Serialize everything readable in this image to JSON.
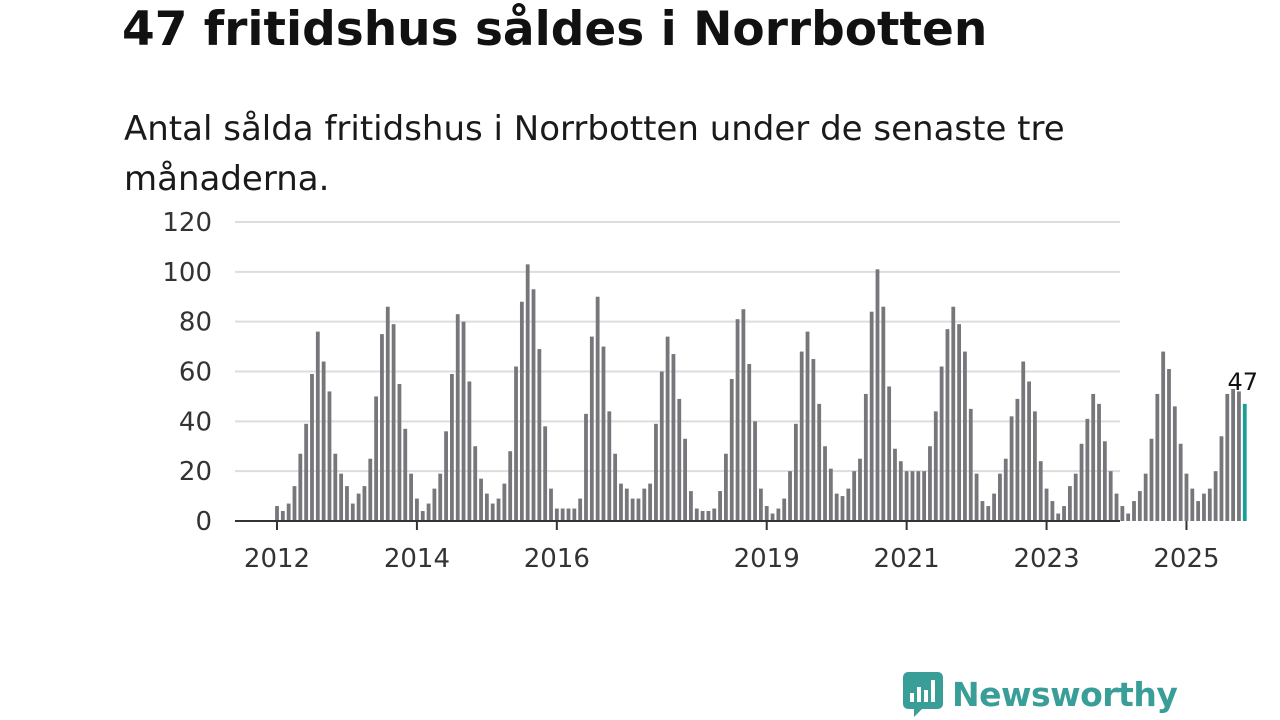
{
  "header": {
    "title": "47 fritidshus såldes i Norrbotten",
    "subtitle": "Antal sålda fritidshus i Norrbotten under de senaste tre månaderna."
  },
  "brand": {
    "name": "Newsworthy",
    "icon": "newsworthy-chart-bubble-icon",
    "color": "#3a9e98"
  },
  "colors": {
    "bar": "#77767b",
    "highlight": "#1a9e9a",
    "grid": "#dddddd",
    "axis": "#333333"
  },
  "chart_data": {
    "type": "bar",
    "title": "47 fritidshus såldes i Norrbotten",
    "subtitle": "Antal sålda fritidshus i Norrbotten under de senaste tre månaderna.",
    "xlabel": "",
    "ylabel": "",
    "ylim": [
      0,
      120
    ],
    "y_ticks": [
      0,
      20,
      40,
      60,
      80,
      100,
      120
    ],
    "x_tick_labels": [
      "2012",
      "2014",
      "2016",
      "2019",
      "2021",
      "2023",
      "2025"
    ],
    "grid": true,
    "legend": "none",
    "first_period": "2012-01",
    "period_unit": "month",
    "values": [
      6,
      4,
      7,
      14,
      27,
      39,
      59,
      76,
      64,
      52,
      27,
      19,
      14,
      7,
      11,
      14,
      25,
      50,
      75,
      86,
      79,
      55,
      37,
      19,
      9,
      4,
      7,
      13,
      19,
      36,
      59,
      83,
      80,
      56,
      30,
      17,
      11,
      7,
      9,
      15,
      28,
      62,
      88,
      103,
      93,
      69,
      38,
      13,
      5,
      5,
      5,
      5,
      9,
      43,
      74,
      90,
      70,
      44,
      27,
      15,
      13,
      9,
      9,
      13,
      15,
      39,
      60,
      74,
      67,
      49,
      33,
      12,
      5,
      4,
      4,
      5,
      12,
      27,
      57,
      81,
      85,
      63,
      40,
      13,
      6,
      3,
      5,
      9,
      20,
      39,
      68,
      76,
      65,
      47,
      30,
      21,
      11,
      10,
      13,
      20,
      25,
      51,
      84,
      101,
      86,
      54,
      29,
      24,
      20,
      20,
      20,
      20,
      30,
      44,
      62,
      77,
      86,
      79,
      68,
      45,
      19,
      8,
      6,
      11,
      19,
      25,
      42,
      49,
      64,
      56,
      44,
      24,
      13,
      8,
      3,
      6,
      14,
      19,
      31,
      41,
      51,
      47,
      32,
      20,
      11,
      6,
      3,
      8,
      12,
      19,
      33,
      51,
      68,
      61,
      46,
      31,
      19,
      13,
      8,
      11,
      13,
      20,
      34,
      51,
      53,
      52,
      47
    ],
    "highlight": {
      "period": "2025-11",
      "value": 47,
      "label": "47"
    }
  }
}
